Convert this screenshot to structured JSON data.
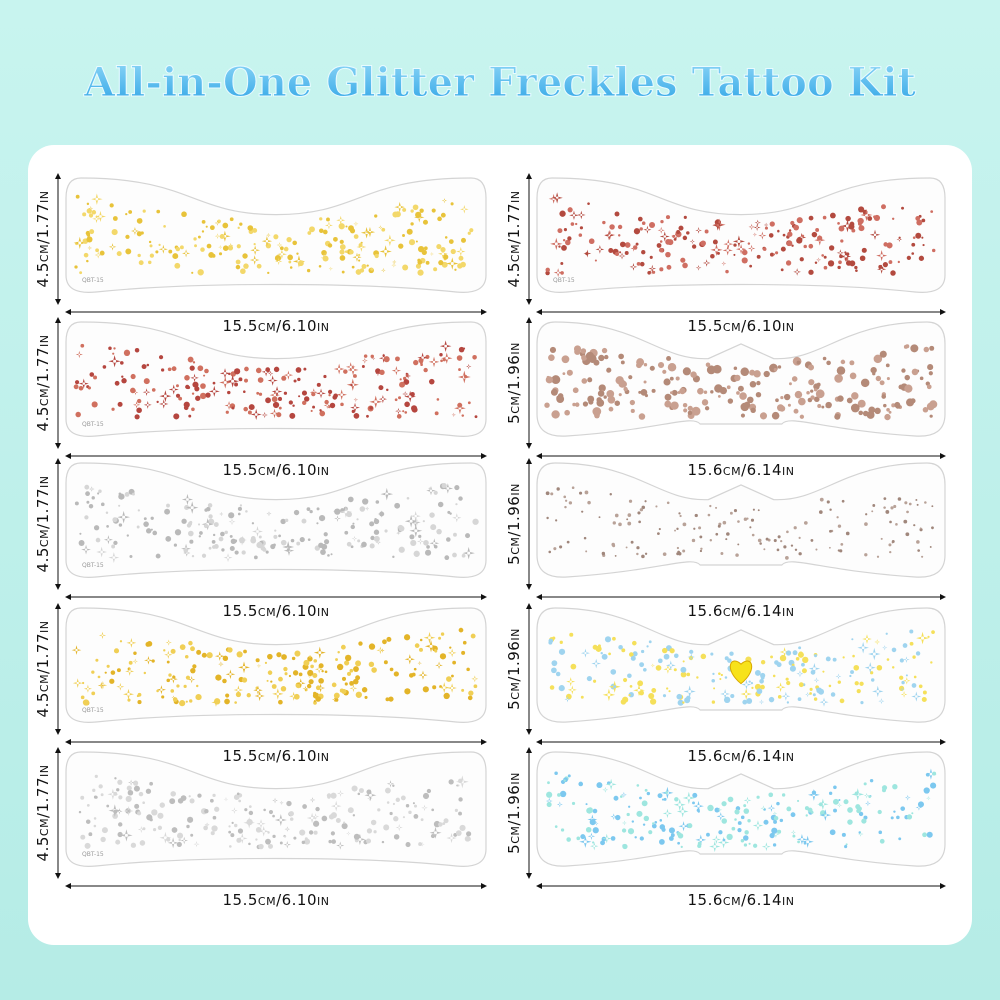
{
  "title": "All-in-One Glitter Freckles Tattoo Kit",
  "sheets": [
    {
      "height_label": "4.5cm/1.77in",
      "width_label": "15.5cm/6.10in",
      "code": "QBT-15"
    },
    {
      "height_label": "4.5cm/1.77in",
      "width_label": "15.5cm/6.10in",
      "code": "QBT-15"
    },
    {
      "height_label": "4.5cm/1.77in",
      "width_label": "15.5cm/6.10in",
      "code": "QBT-15"
    },
    {
      "height_label": "4.5cm/1.77in",
      "width_label": "15.5cm/6.10in",
      "code": "QBT-15"
    },
    {
      "height_label": "4.5cm/1.77in",
      "width_label": "15.5cm/6.10in",
      "code": "QBT-15"
    },
    {
      "height_label": "4.5cm/1.77in",
      "width_label": "15.5cm/6.10in",
      "code": "QBT-15"
    },
    {
      "height_label": "5cm/1.96in",
      "width_label": "15.6cm/6.14in"
    },
    {
      "height_label": "5cm/1.96in",
      "width_label": "15.6cm/6.14in"
    },
    {
      "height_label": "5cm/1.96in",
      "width_label": "15.6cm/6.14in"
    },
    {
      "height_label": "5cm/1.96in",
      "width_label": "15.6cm/6.14in"
    }
  ]
}
